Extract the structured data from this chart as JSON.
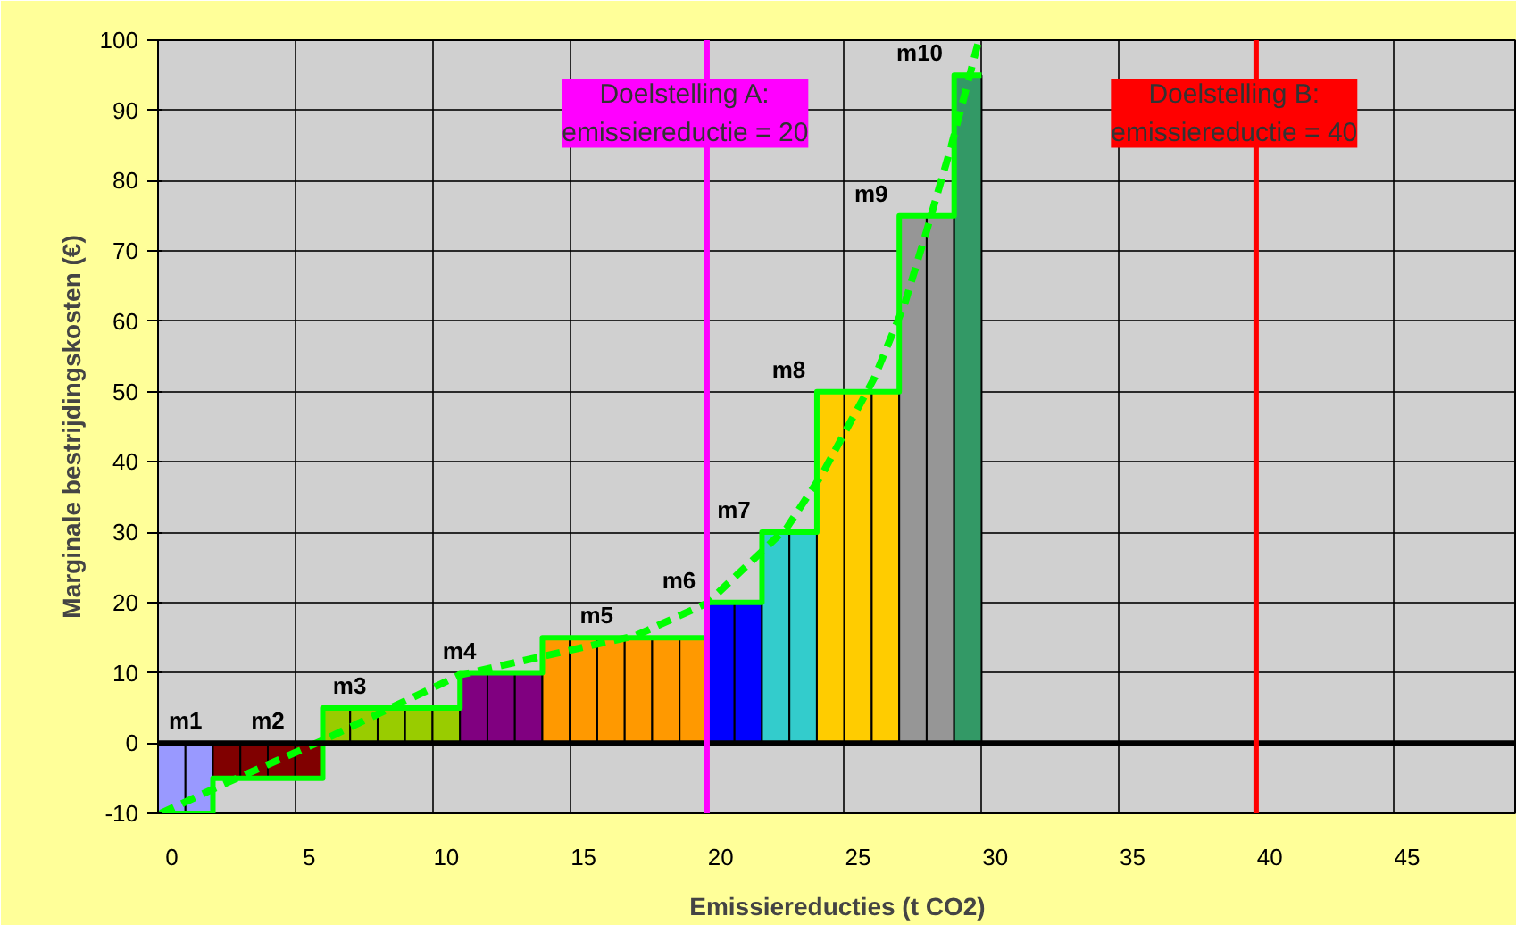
{
  "chart_data": {
    "type": "bar",
    "xlabel": "Emissiereducties (t CO2)",
    "ylabel": "Marginale bestrijdingskosten (€)",
    "series": [
      {
        "x": [
          0,
          1,
          2,
          3,
          4,
          5,
          6,
          7,
          8,
          9,
          10,
          11,
          12,
          13,
          14,
          15,
          16,
          17,
          18,
          19,
          20,
          21,
          22,
          23,
          24,
          25,
          26,
          27,
          28,
          29
        ],
        "values": [
          -10,
          -10,
          -5,
          -5,
          -5,
          -5,
          5,
          5,
          5,
          5,
          5,
          10,
          10,
          10,
          15,
          15,
          15,
          15,
          15,
          15,
          20,
          20,
          30,
          30,
          50,
          50,
          50,
          75,
          75,
          95
        ],
        "colors": [
          "#9999ff",
          "#9999ff",
          "#800000",
          "#800000",
          "#800000",
          "#800000",
          "#99cc00",
          "#99cc00",
          "#99cc00",
          "#99cc00",
          "#99cc00",
          "#800080",
          "#800080",
          "#800080",
          "#ff9900",
          "#ff9900",
          "#ff9900",
          "#ff9900",
          "#ff9900",
          "#ff9900",
          "#0000ff",
          "#0000ff",
          "#33cccc",
          "#33cccc",
          "#ffcc00",
          "#ffcc00",
          "#ffcc00",
          "#969696",
          "#969696",
          "#339966"
        ]
      },
      {
        "type": "step",
        "x": [
          -0.5,
          1.5,
          5.5,
          10.5,
          13.5,
          19.5,
          21.5,
          23.5,
          26.5,
          28.5,
          29.5
        ],
        "values": [
          -10,
          -5,
          5,
          10,
          15,
          20,
          30,
          50,
          75,
          95,
          95
        ],
        "color": "#00ff00"
      },
      {
        "type": "line",
        "x": [
          -0.4,
          1.8,
          5.5,
          10.5,
          16.9,
          19.5,
          22.4,
          23.7,
          25.6,
          26.7,
          27.5,
          28.4,
          29.4
        ],
        "values": [
          -10,
          -6,
          0.4,
          9.7,
          15.3,
          19.9,
          30.6,
          38.3,
          52,
          62.5,
          72.9,
          85,
          100
        ],
        "color": "#00ff00",
        "line_style": "dashed"
      }
    ],
    "annotations": [
      {
        "text": "m1",
        "x": 0.5,
        "y": 0
      },
      {
        "text": "m2",
        "x": 3.5,
        "y": 0
      },
      {
        "text": "m3",
        "x": 8,
        "y": 5
      },
      {
        "text": "m4",
        "x": 12,
        "y": 10
      },
      {
        "text": "m5",
        "x": 17,
        "y": 15
      },
      {
        "text": "m6",
        "x": 20,
        "y": 20
      },
      {
        "text": "m7",
        "x": 22,
        "y": 30
      },
      {
        "text": "m8",
        "x": 24,
        "y": 50
      },
      {
        "text": "m9",
        "x": 27,
        "y": 75
      },
      {
        "text": "m10",
        "x": 29,
        "y": 95
      }
    ],
    "ref_lines": [
      {
        "axis": "y",
        "value": 0,
        "label": null,
        "color": "#000000"
      },
      {
        "axis": "x",
        "value": 19.5,
        "label": "Doelstelling A:\nemissiereductie = 20",
        "color": "#ff00ff"
      },
      {
        "axis": "x",
        "value": 39.5,
        "label": "Doelstelling B:\nemissiereductie = 40",
        "color": "#ff0000"
      }
    ],
    "xlim": [
      -0.5,
      49
    ],
    "xticks": [
      {
        "value": 0,
        "label": "0"
      },
      {
        "value": 5,
        "label": "5"
      },
      {
        "value": 10,
        "label": "10"
      },
      {
        "value": 15,
        "label": "15"
      },
      {
        "value": 20,
        "label": "20"
      },
      {
        "value": 25,
        "label": "25"
      },
      {
        "value": 30,
        "label": "30"
      },
      {
        "value": 35,
        "label": "35"
      },
      {
        "value": 40,
        "label": "40"
      },
      {
        "value": 45,
        "label": "45"
      },
      {
        "value": 4.5,
        "label": null
      },
      {
        "value": 9.5,
        "label": null
      },
      {
        "value": 14.5,
        "label": null
      },
      {
        "value": 19.5,
        "label": null
      },
      {
        "value": 24.5,
        "label": null
      },
      {
        "value": 29.5,
        "label": null
      },
      {
        "value": 34.5,
        "label": null
      },
      {
        "value": 39.5,
        "label": null
      },
      {
        "value": 44.5,
        "label": null
      }
    ],
    "ylim": [
      -10,
      100
    ],
    "yticks": [
      -10,
      0,
      10,
      20,
      30,
      40,
      50,
      60,
      70,
      80,
      90,
      100
    ],
    "grid": true
  }
}
